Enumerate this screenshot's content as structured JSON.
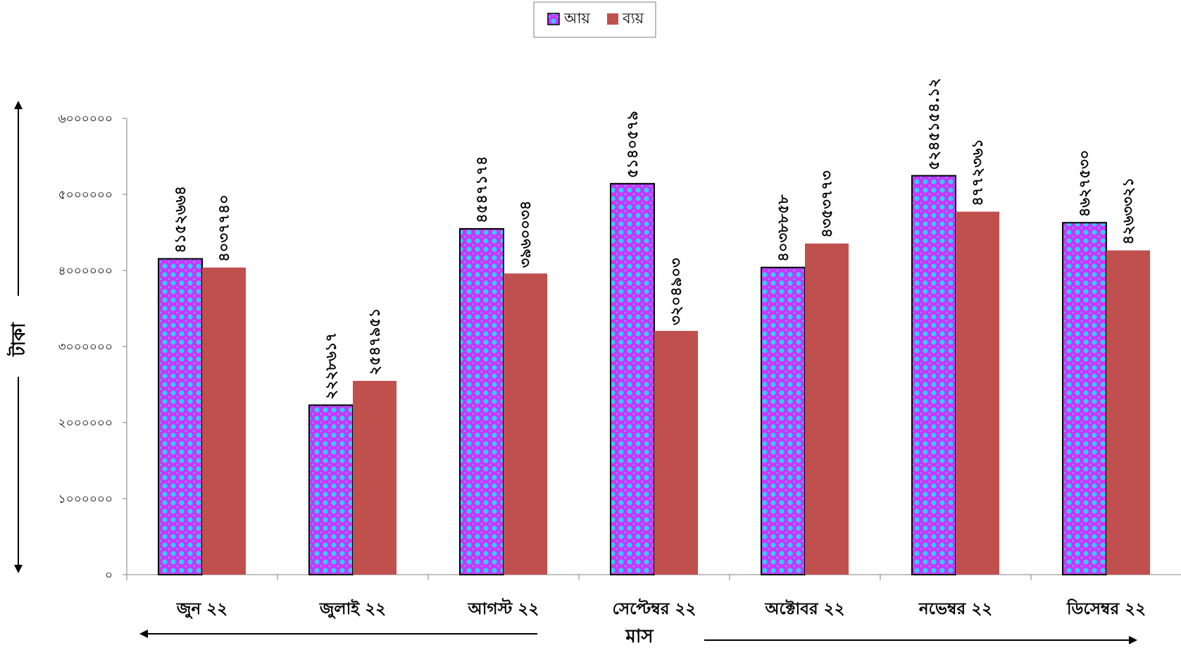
{
  "chart_data": {
    "type": "bar",
    "categories": [
      "জুন ২২",
      "জুলাই ২২",
      "আগস্ট ২২",
      "সেপ্টেম্বর ২২",
      "অক্টোবর ২২",
      "নভেম্বর ২২",
      "ডিসেম্বর ২২"
    ],
    "series": [
      {
        "name": "আয়",
        "values": [
          4152664,
          2228617,
          4547174,
          5140579,
          4038858,
          5245154.12,
          4627530
        ],
        "labels": [
          "৪১৫২৬৬৪",
          "২২২৮৬১৭",
          "৪৫৪৭১৭৪",
          "৫১৪০৫৭৯",
          "৪০৩৮৮৫৮",
          "৫২৪৫১৫৪.১২",
          "৪৬২৭৫৩০"
        ],
        "color": "#cc33ff",
        "pattern_color": "#33ccff"
      },
      {
        "name": "ব্যয়",
        "values": [
          4037740,
          2547951,
          3960034,
          3204903,
          4353773,
          4772361,
          4263321
        ],
        "labels": [
          "৪০৩৭৭৪০",
          "২৫৪৭৯৫১",
          "৩৯৬০০৩৪",
          "৩২০৪৯০৩",
          "৪৩৫৩৭৭৩",
          "৪৭৭২৩৬১",
          "৪২৬৩৩২১"
        ],
        "color": "#c0504d"
      }
    ],
    "ylim": [
      0,
      6000000
    ],
    "yticks": [
      0,
      1000000,
      2000000,
      3000000,
      4000000,
      5000000,
      6000000
    ],
    "ytick_labels": [
      "০",
      "১০০০০০০",
      "২০০০০০০",
      "৩০০০০০০",
      "৪০০০০০০",
      "৫০০০০০০",
      "৬০০০০০০"
    ],
    "xlabel": "মাস",
    "ylabel": "টাকা",
    "legend_position": "top-center",
    "grid": false
  }
}
